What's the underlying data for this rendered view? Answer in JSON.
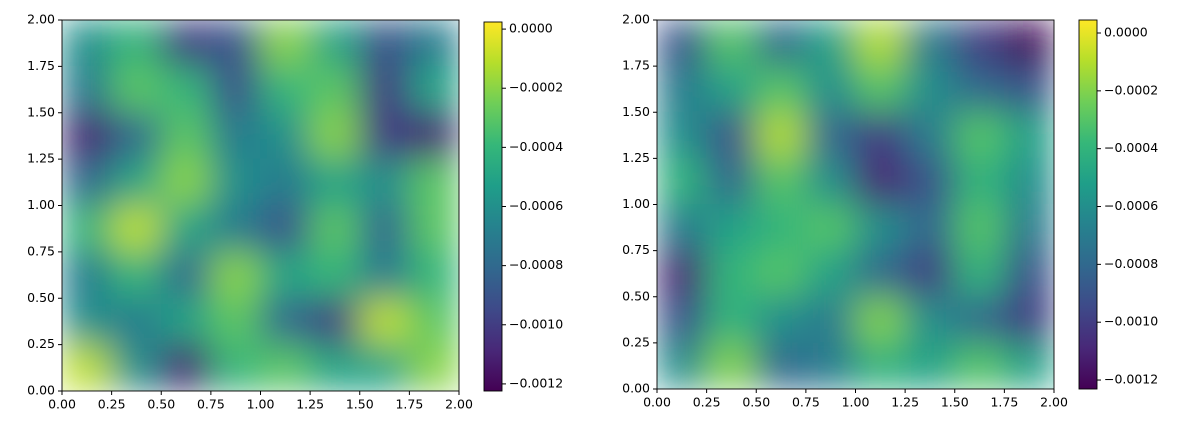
{
  "chart_data": [
    {
      "type": "heatmap",
      "colormap": "viridis",
      "xlim": [
        0,
        2
      ],
      "ylim": [
        0,
        2
      ],
      "xticks": [
        {
          "value": 0,
          "label": "0.00"
        },
        {
          "value": 0.25,
          "label": "0.25"
        },
        {
          "value": 0.5,
          "label": "0.50"
        },
        {
          "value": 0.75,
          "label": "0.75"
        },
        {
          "value": 1,
          "label": "1.00"
        },
        {
          "value": 1.25,
          "label": "1.25"
        },
        {
          "value": 1.5,
          "label": "1.50"
        },
        {
          "value": 1.75,
          "label": "1.75"
        },
        {
          "value": 2,
          "label": "2.00"
        }
      ],
      "yticks": [
        {
          "value": 0,
          "label": "0.00"
        },
        {
          "value": 0.25,
          "label": "0.25"
        },
        {
          "value": 0.5,
          "label": "0.50"
        },
        {
          "value": 0.75,
          "label": "0.75"
        },
        {
          "value": 1,
          "label": "1.00"
        },
        {
          "value": 1.25,
          "label": "1.25"
        },
        {
          "value": 1.5,
          "label": "1.50"
        },
        {
          "value": 1.75,
          "label": "1.75"
        },
        {
          "value": 2,
          "label": "2.00"
        }
      ],
      "clim": [
        -0.001224,
        2.4e-05
      ],
      "cticks": [
        {
          "value": 0,
          "label": "0.0000"
        },
        {
          "value": -0.0002,
          "label": "−0.0002"
        },
        {
          "value": -0.0004,
          "label": "−0.0004"
        },
        {
          "value": -0.0006,
          "label": "−0.0006"
        },
        {
          "value": -0.0008,
          "label": "−0.0008"
        },
        {
          "value": -0.001,
          "label": "−0.0010"
        },
        {
          "value": -0.0012,
          "label": "−0.0012"
        }
      ],
      "z": [
        [
          -0.0006,
          -0.0004,
          -0.001,
          -0.0009,
          -0.0002,
          -0.0005,
          -0.0009,
          -0.0007
        ],
        [
          -0.0007,
          -0.0003,
          -0.0004,
          -0.0009,
          -0.0004,
          -0.0003,
          -0.001,
          -0.0005
        ],
        [
          -0.0011,
          -0.0008,
          -0.0003,
          -0.0007,
          -0.0006,
          -0.0002,
          -0.001,
          -0.0011
        ],
        [
          -0.0008,
          -0.0005,
          -0.0002,
          -0.0006,
          -0.0007,
          -0.0005,
          -0.0006,
          -0.0003
        ],
        [
          -0.0004,
          -0.0001,
          -0.0005,
          -0.0007,
          -0.0009,
          -0.0003,
          -0.0008,
          -0.0003
        ],
        [
          -0.0007,
          -0.0004,
          -0.0008,
          -0.0002,
          -0.0005,
          -0.0004,
          -0.0007,
          -0.0004
        ],
        [
          -0.0006,
          -0.0007,
          -0.0005,
          -0.0003,
          -0.0008,
          -0.001,
          -0.0001,
          -0.0003
        ],
        [
          -0.0001,
          -0.0006,
          -0.0011,
          -0.0004,
          -0.0003,
          -0.0005,
          -0.0005,
          -0.0002
        ]
      ]
    },
    {
      "type": "heatmap",
      "colormap": "viridis",
      "xlim": [
        0,
        2
      ],
      "ylim": [
        0,
        2
      ],
      "xticks": [
        {
          "value": 0,
          "label": "0.00"
        },
        {
          "value": 0.25,
          "label": "0.25"
        },
        {
          "value": 0.5,
          "label": "0.50"
        },
        {
          "value": 0.75,
          "label": "0.75"
        },
        {
          "value": 1,
          "label": "1.00"
        },
        {
          "value": 1.25,
          "label": "1.25"
        },
        {
          "value": 1.5,
          "label": "1.50"
        },
        {
          "value": 1.75,
          "label": "1.75"
        },
        {
          "value": 2,
          "label": "2.00"
        }
      ],
      "yticks": [
        {
          "value": 0,
          "label": "0.00"
        },
        {
          "value": 0.25,
          "label": "0.25"
        },
        {
          "value": 0.5,
          "label": "0.50"
        },
        {
          "value": 0.75,
          "label": "0.75"
        },
        {
          "value": 1,
          "label": "1.00"
        },
        {
          "value": 1.25,
          "label": "1.25"
        },
        {
          "value": 1.5,
          "label": "1.50"
        },
        {
          "value": 1.75,
          "label": "1.75"
        },
        {
          "value": 2,
          "label": "2.00"
        }
      ],
      "clim": [
        -0.001231,
        4.5e-05
      ],
      "cticks": [
        {
          "value": 0,
          "label": "0.0000"
        },
        {
          "value": -0.0002,
          "label": "−0.0002"
        },
        {
          "value": -0.0004,
          "label": "−0.0004"
        },
        {
          "value": -0.0006,
          "label": "−0.0006"
        },
        {
          "value": -0.0008,
          "label": "−0.0008"
        },
        {
          "value": -0.001,
          "label": "−0.0010"
        },
        {
          "value": -0.0012,
          "label": "−0.0012"
        }
      ],
      "z": [
        [
          -0.0009,
          -0.0003,
          -0.0008,
          -0.0005,
          -0.0001,
          -0.0007,
          -0.001,
          -0.0012
        ],
        [
          -0.0007,
          -0.0005,
          -0.0003,
          -0.0006,
          -0.0003,
          -0.0006,
          -0.0008,
          -0.0009
        ],
        [
          -0.0006,
          -0.0009,
          -0.0001,
          -0.0008,
          -0.001,
          -0.0007,
          -0.0003,
          -0.0005
        ],
        [
          -0.0004,
          -0.0008,
          -0.0003,
          -0.0006,
          -0.0011,
          -0.0009,
          -0.0004,
          -0.0006
        ],
        [
          -0.0007,
          -0.0005,
          -0.0004,
          -0.0003,
          -0.0006,
          -0.0008,
          -0.0003,
          -0.0007
        ],
        [
          -0.0011,
          -0.0004,
          -0.0003,
          -0.0005,
          -0.0008,
          -0.001,
          -0.0004,
          -0.0009
        ],
        [
          -0.0009,
          -0.0004,
          -0.0006,
          -0.0007,
          -0.0002,
          -0.0006,
          -0.0008,
          -0.001
        ],
        [
          -0.0006,
          -0.0002,
          -0.0008,
          -0.0007,
          -0.0004,
          -0.0005,
          -0.0003,
          -0.0005
        ]
      ]
    }
  ]
}
